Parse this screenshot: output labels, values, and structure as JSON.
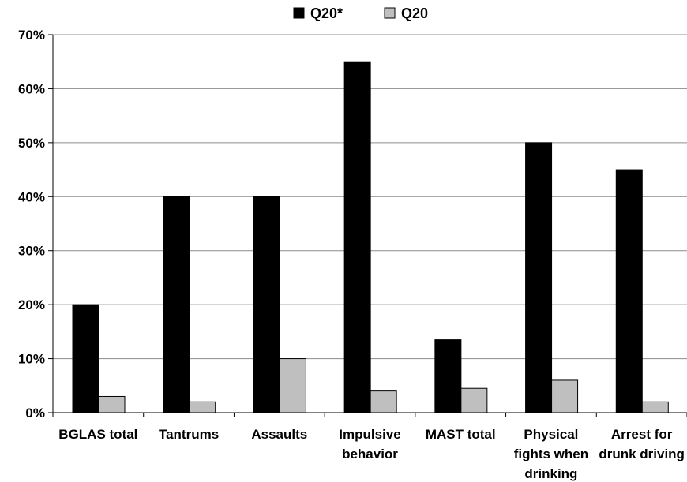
{
  "chart_data": {
    "type": "bar",
    "categories": [
      [
        "BGLAS total"
      ],
      [
        "Tantrums"
      ],
      [
        "Assaults"
      ],
      [
        "Impulsive",
        "behavior"
      ],
      [
        "MAST total"
      ],
      [
        "Physical",
        "fights when",
        "drinking"
      ],
      [
        "Arrest for",
        "drunk driving"
      ]
    ],
    "series": [
      {
        "name": "Q20*",
        "color": "#000000",
        "values": [
          20,
          40,
          40,
          65,
          13.5,
          50,
          45
        ]
      },
      {
        "name": "Q20",
        "color": "#bfbfbf",
        "values": [
          3,
          2,
          10,
          4,
          4.5,
          6,
          2
        ]
      }
    ],
    "yticks": [
      "0%",
      "10%",
      "20%",
      "30%",
      "40%",
      "50%",
      "60%",
      "70%"
    ],
    "ylim": [
      0,
      70
    ],
    "grid": true,
    "legend": "top-center",
    "title": "",
    "xlabel": "",
    "ylabel": ""
  }
}
